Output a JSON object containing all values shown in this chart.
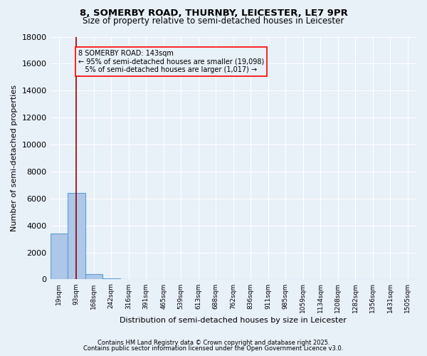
{
  "title_line1": "8, SOMERBY ROAD, THURNBY, LEICESTER, LE7 9PR",
  "title_line2": "Size of property relative to semi-detached houses in Leicester",
  "xlabel": "Distribution of semi-detached houses by size in Leicester",
  "ylabel": "Number of semi-detached properties",
  "bin_labels": [
    "19sqm",
    "93sqm",
    "168sqm",
    "242sqm",
    "316sqm",
    "391sqm",
    "465sqm",
    "539sqm",
    "613sqm",
    "688sqm",
    "762sqm",
    "836sqm",
    "911sqm",
    "985sqm",
    "1059sqm",
    "1134sqm",
    "1208sqm",
    "1282sqm",
    "1356sqm",
    "1431sqm",
    "1505sqm"
  ],
  "bar_values": [
    3400,
    6400,
    400,
    100,
    0,
    0,
    0,
    0,
    0,
    0,
    0,
    0,
    0,
    0,
    0,
    0,
    0,
    0,
    0,
    0,
    0
  ],
  "bar_color": "#aec6e8",
  "bar_edge_color": "#5a9fd4",
  "red_line_x": 1.5,
  "annotation_text": "8 SOMERBY ROAD: 143sqm\n← 95% of semi-detached houses are smaller (19,098)\n   5% of semi-detached houses are larger (1,017) →",
  "ylim": [
    0,
    18000
  ],
  "yticks": [
    0,
    2000,
    4000,
    6000,
    8000,
    10000,
    12000,
    14000,
    16000,
    18000
  ],
  "bg_color": "#e8f0f8",
  "grid_color": "#ffffff",
  "footer_line1": "Contains HM Land Registry data © Crown copyright and database right 2025.",
  "footer_line2": "Contains public sector information licensed under the Open Government Licence v3.0."
}
